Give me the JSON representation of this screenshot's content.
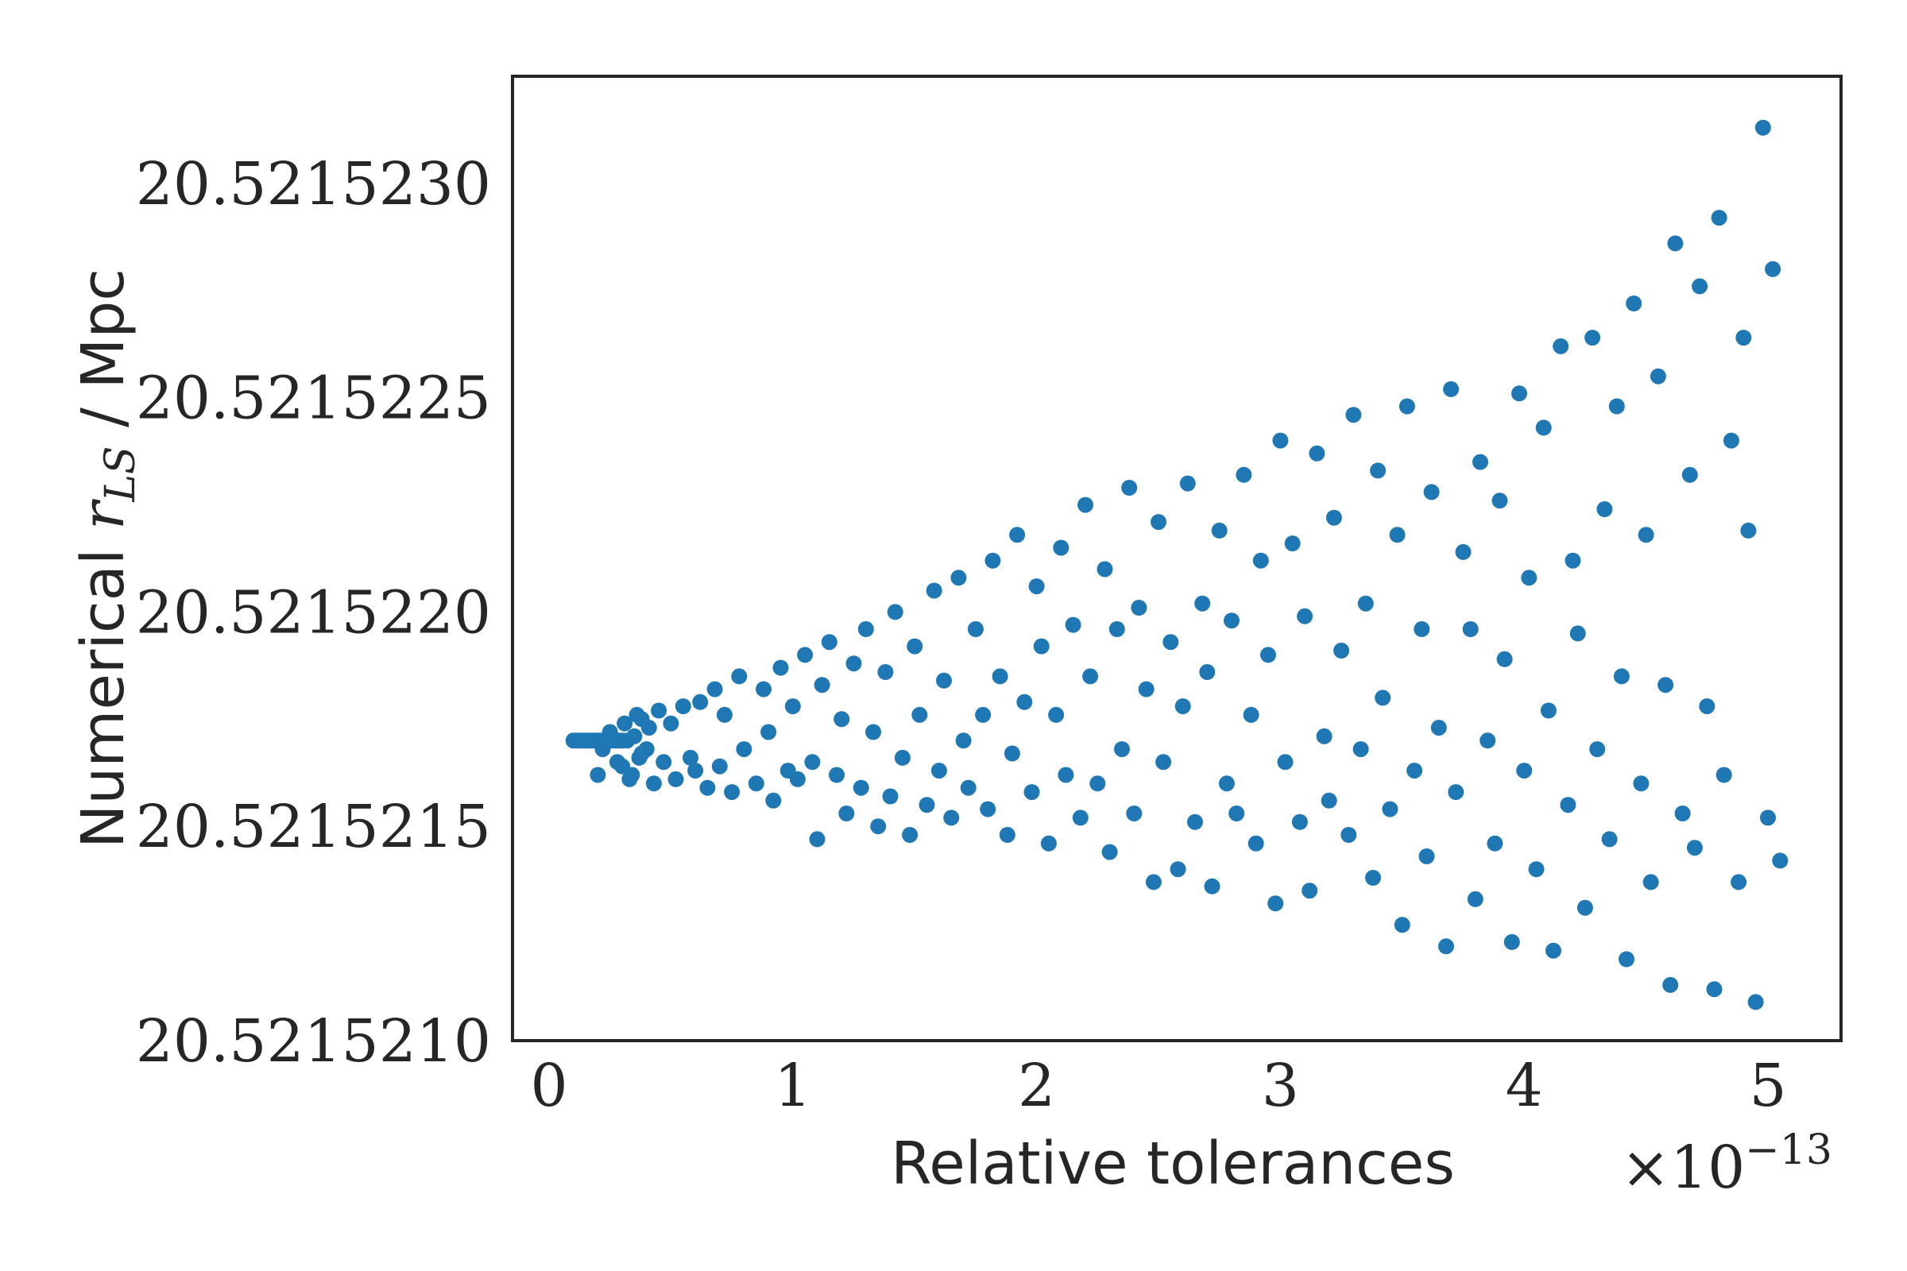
{
  "chart_data": {
    "type": "scatter",
    "xlabel": "Relative tolerances",
    "ylabel_prefix": "Numerical ",
    "ylabel_math": "r",
    "ylabel_math_sub": "LS",
    "ylabel_suffix": " / Mpc",
    "x_offset_text": "×10",
    "x_offset_exponent": "−13",
    "x_multiplier": 1e-13,
    "xlim": [
      -0.15,
      5.3
    ],
    "ylim": [
      20.521521,
      20.52152325
    ],
    "x_ticks": [
      0,
      1,
      2,
      3,
      4,
      5
    ],
    "x_tick_labels": [
      "0",
      "1",
      "2",
      "3",
      "4",
      "5"
    ],
    "y_ticks": [
      20.521521,
      20.5215215,
      20.521522,
      20.5215225,
      20.521523
    ],
    "y_tick_labels": [
      "20.5215210",
      "20.5215215",
      "20.5215220",
      "20.5215225",
      "20.5215230"
    ],
    "grid": false,
    "marker_color": "#1f77b4",
    "points_center": 20.5215217,
    "points_x": [
      0.1,
      0.11,
      0.12,
      0.13,
      0.14,
      0.15,
      0.16,
      0.17,
      0.18,
      0.19,
      0.2,
      0.21,
      0.22,
      0.23,
      0.24,
      0.25,
      0.26,
      0.27,
      0.28,
      0.29,
      0.3,
      0.2,
      0.22,
      0.25,
      0.28,
      0.31,
      0.33,
      0.35,
      0.37,
      0.38,
      0.4,
      0.3,
      0.32,
      0.34,
      0.36,
      0.38,
      0.41,
      0.43,
      0.45,
      0.47,
      0.5,
      0.52,
      0.55,
      0.58,
      0.6,
      0.62,
      0.65,
      0.68,
      0.7,
      0.72,
      0.75,
      0.78,
      0.8,
      0.85,
      0.88,
      0.9,
      0.92,
      0.95,
      0.98,
      1.0,
      1.02,
      1.05,
      1.08,
      1.1,
      1.12,
      1.15,
      1.18,
      1.2,
      1.22,
      1.25,
      1.28,
      1.3,
      1.33,
      1.35,
      1.38,
      1.4,
      1.42,
      1.45,
      1.48,
      1.5,
      1.52,
      1.55,
      1.58,
      1.6,
      1.62,
      1.65,
      1.68,
      1.7,
      1.72,
      1.75,
      1.78,
      1.8,
      1.82,
      1.85,
      1.88,
      1.9,
      1.92,
      1.95,
      1.98,
      2.0,
      2.02,
      2.05,
      2.08,
      2.1,
      2.12,
      2.15,
      2.18,
      2.2,
      2.22,
      2.25,
      2.28,
      2.3,
      2.33,
      2.35,
      2.38,
      2.4,
      2.42,
      2.45,
      2.48,
      2.5,
      2.52,
      2.55,
      2.58,
      2.6,
      2.62,
      2.65,
      2.68,
      2.7,
      2.72,
      2.75,
      2.78,
      2.8,
      2.82,
      2.85,
      2.88,
      2.9,
      2.92,
      2.95,
      2.98,
      3.0,
      3.02,
      3.05,
      3.08,
      3.1,
      3.12,
      3.15,
      3.18,
      3.2,
      3.22,
      3.25,
      3.28,
      3.3,
      3.33,
      3.35,
      3.38,
      3.4,
      3.42,
      3.45,
      3.48,
      3.5,
      3.52,
      3.55,
      3.58,
      3.6,
      3.62,
      3.65,
      3.68,
      3.7,
      3.72,
      3.75,
      3.78,
      3.8,
      3.82,
      3.85,
      3.88,
      3.9,
      3.92,
      3.95,
      3.98,
      4.0,
      4.02,
      4.05,
      4.08,
      4.1,
      4.12,
      4.15,
      4.18,
      4.2,
      4.22,
      4.25,
      4.28,
      4.3,
      4.33,
      4.35,
      4.38,
      4.4,
      4.42,
      4.45,
      4.48,
      4.5,
      4.52,
      4.55,
      4.58,
      4.6,
      4.62,
      4.65,
      4.68,
      4.7,
      4.72,
      4.75,
      4.78,
      4.8,
      4.82,
      4.85,
      4.88,
      4.9,
      4.92,
      4.95,
      4.98,
      5.0,
      5.02,
      5.05
    ],
    "points_y": [
      20.5215217,
      20.5215217,
      20.5215217,
      20.5215217,
      20.5215217,
      20.5215217,
      20.5215217,
      20.5215217,
      20.5215217,
      20.5215217,
      20.5215217,
      20.5215217,
      20.5215217,
      20.5215217,
      20.5215217,
      20.5215217,
      20.5215217,
      20.5215217,
      20.5215217,
      20.5215217,
      20.5215217,
      20.52152162,
      20.52152168,
      20.52152172,
      20.52152165,
      20.52152174,
      20.52152161,
      20.52152171,
      20.52152166,
      20.52152175,
      20.52152168,
      20.52152164,
      20.5215217,
      20.52152162,
      20.52152176,
      20.52152167,
      20.52152173,
      20.5215216,
      20.52152177,
      20.52152165,
      20.52152174,
      20.52152161,
      20.52152178,
      20.52152166,
      20.52152163,
      20.52152179,
      20.52152159,
      20.52152182,
      20.52152164,
      20.52152176,
      20.52152158,
      20.52152185,
      20.52152168,
      20.5215216,
      20.52152182,
      20.52152172,
      20.52152156,
      20.52152187,
      20.52152163,
      20.52152178,
      20.52152161,
      20.5215219,
      20.52152165,
      20.52152147,
      20.52152183,
      20.52152193,
      20.52152162,
      20.52152175,
      20.52152153,
      20.52152188,
      20.52152159,
      20.52152196,
      20.52152172,
      20.5215215,
      20.52152186,
      20.52152157,
      20.521522,
      20.52152166,
      20.52152148,
      20.52152192,
      20.52152176,
      20.52152155,
      20.52152205,
      20.52152163,
      20.52152184,
      20.52152152,
      20.52152208,
      20.5215217,
      20.52152159,
      20.52152196,
      20.52152176,
      20.52152154,
      20.52152212,
      20.52152185,
      20.52152148,
      20.52152167,
      20.52152218,
      20.52152179,
      20.52152158,
      20.52152206,
      20.52152192,
      20.52152146,
      20.52152176,
      20.52152215,
      20.52152162,
      20.52152197,
      20.52152152,
      20.52152225,
      20.52152185,
      20.5215216,
      20.5215221,
      20.52152144,
      20.52152196,
      20.52152168,
      20.52152229,
      20.52152153,
      20.52152201,
      20.52152182,
      20.52152137,
      20.52152221,
      20.52152165,
      20.52152193,
      20.5215214,
      20.52152178,
      20.5215223,
      20.52152151,
      20.52152202,
      20.52152186,
      20.52152136,
      20.52152219,
      20.5215216,
      20.52152198,
      20.52152153,
      20.52152232,
      20.52152176,
      20.52152146,
      20.52152212,
      20.5215219,
      20.52152132,
      20.5215224,
      20.52152165,
      20.52152216,
      20.52152151,
      20.52152199,
      20.52152135,
      20.52152237,
      20.52152171,
      20.52152156,
      20.52152222,
      20.52152191,
      20.52152148,
      20.52152246,
      20.52152168,
      20.52152202,
      20.52152138,
      20.52152233,
      20.5215218,
      20.52152154,
      20.52152218,
      20.52152127,
      20.52152248,
      20.52152163,
      20.52152196,
      20.52152143,
      20.52152228,
      20.52152173,
      20.52152122,
      20.52152252,
      20.52152158,
      20.52152214,
      20.52152196,
      20.52152133,
      20.52152235,
      20.5215217,
      20.52152146,
      20.52152226,
      20.52152189,
      20.52152123,
      20.52152251,
      20.52152163,
      20.52152208,
      20.5215214,
      20.52152243,
      20.52152177,
      20.52152121,
      20.52152262,
      20.52152155,
      20.52152212,
      20.52152195,
      20.52152131,
      20.52152264,
      20.52152168,
      20.52152224,
      20.52152147,
      20.52152248,
      20.52152185,
      20.52152119,
      20.52152272,
      20.5215216,
      20.52152218,
      20.52152137,
      20.52152255,
      20.52152183,
      20.52152113,
      20.52152286,
      20.52152153,
      20.52152232,
      20.52152145,
      20.52152276,
      20.52152178,
      20.52152112,
      20.52152292,
      20.52152162,
      20.5215224,
      20.52152137,
      20.52152264,
      20.52152219,
      20.52152109,
      20.52152313,
      20.52152152,
      20.5215228,
      20.52152142,
      20.52152302,
      20.52152196,
      20.5215214,
      20.52152309,
      20.52152218
    ]
  }
}
